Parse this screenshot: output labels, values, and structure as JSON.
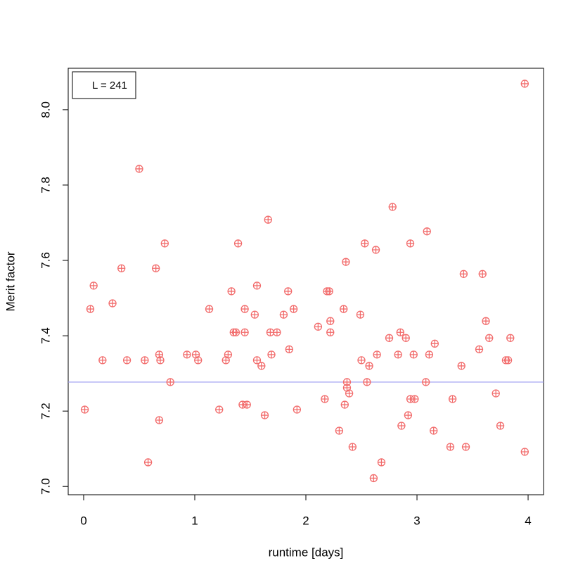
{
  "chart_data": {
    "type": "scatter",
    "x_label": "runtime [days]",
    "y_label": "Merit factor",
    "legend_text": "L = 241",
    "color": "#f26b6b",
    "hline_color": "#9b9bf0",
    "hline": 7.277,
    "xlim": [
      -0.139,
      4.139
    ],
    "ylim": [
      6.978,
      8.11
    ],
    "xticks": [
      0,
      1,
      2,
      3,
      4
    ],
    "yticks": [
      {
        "value": 7,
        "label": "7.0"
      },
      7.2,
      7.4,
      7.6,
      7.8,
      {
        "value": 8,
        "label": "8.0"
      }
    ],
    "x": [
      0.01,
      0.06,
      0.09,
      0.17,
      0.26,
      0.34,
      0.39,
      0.5,
      0.55,
      0.58,
      0.65,
      0.68,
      0.68,
      0.69,
      0.73,
      0.78,
      0.93,
      1.01,
      1.03,
      1.13,
      1.22,
      1.28,
      1.3,
      1.33,
      1.35,
      1.37,
      1.39,
      1.43,
      1.45,
      1.45,
      1.47,
      1.54,
      1.56,
      1.56,
      1.6,
      1.63,
      1.66,
      1.68,
      1.69,
      1.74,
      1.8,
      1.84,
      1.85,
      1.89,
      1.92,
      2.11,
      2.17,
      2.19,
      2.21,
      2.22,
      2.22,
      2.3,
      2.34,
      2.35,
      2.36,
      2.37,
      2.37,
      2.39,
      2.42,
      2.49,
      2.5,
      2.53,
      2.55,
      2.57,
      2.61,
      2.63,
      2.64,
      2.68,
      2.75,
      2.78,
      2.83,
      2.85,
      2.86,
      2.9,
      2.92,
      2.94,
      2.94,
      2.97,
      2.98,
      3.08,
      3.09,
      3.11,
      3.15,
      3.16,
      3.3,
      3.32,
      3.4,
      3.42,
      3.44,
      3.56,
      3.59,
      3.62,
      3.65,
      3.71,
      3.75,
      3.8,
      3.82,
      3.84,
      3.97,
      3.97
    ],
    "values": [
      7.204,
      7.471,
      7.533,
      7.335,
      7.486,
      7.579,
      7.335,
      7.843,
      7.335,
      7.064,
      7.579,
      7.35,
      7.176,
      7.335,
      7.645,
      7.277,
      7.35,
      7.35,
      7.335,
      7.471,
      7.204,
      7.335,
      7.35,
      7.518,
      7.409,
      7.409,
      7.645,
      7.217,
      7.471,
      7.409,
      7.217,
      7.456,
      7.533,
      7.335,
      7.32,
      7.189,
      7.708,
      7.409,
      7.35,
      7.409,
      7.456,
      7.518,
      7.364,
      7.471,
      7.204,
      7.424,
      7.232,
      7.518,
      7.518,
      7.439,
      7.409,
      7.148,
      7.471,
      7.217,
      7.596,
      7.262,
      7.277,
      7.247,
      7.105,
      7.456,
      7.335,
      7.645,
      7.277,
      7.32,
      7.022,
      7.628,
      7.35,
      7.064,
      7.394,
      7.742,
      7.35,
      7.409,
      7.161,
      7.394,
      7.189,
      7.232,
      7.645,
      7.35,
      7.232,
      7.277,
      7.677,
      7.35,
      7.148,
      7.379,
      7.105,
      7.232,
      7.32,
      7.564,
      7.105,
      7.364,
      7.564,
      7.439,
      7.394,
      7.247,
      7.161,
      7.335,
      7.335,
      7.394,
      7.092,
      8.069
    ]
  }
}
